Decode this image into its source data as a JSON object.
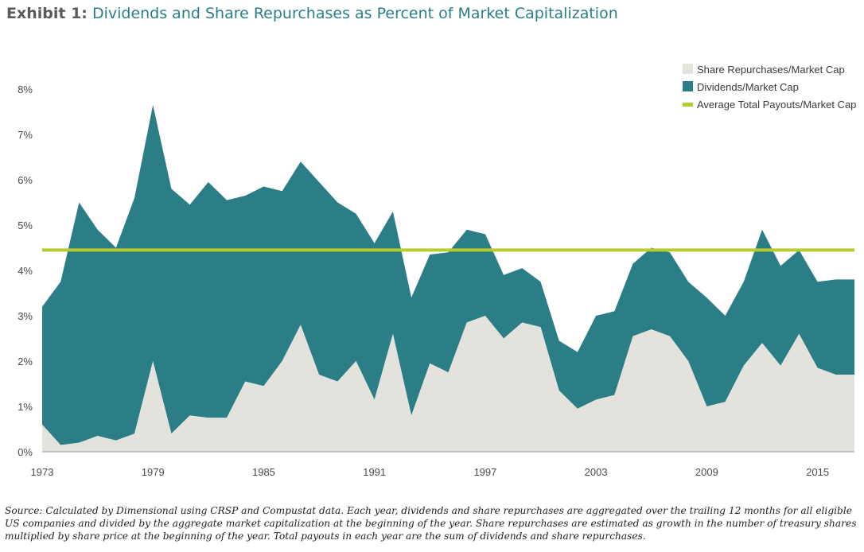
{
  "title": {
    "prefix": "Exhibit 1:",
    "main": "Dividends and Share Repurchases as Percent of Market Capitalization"
  },
  "source_note": "Source: Calculated by Dimensional using CRSP and Compustat data. Each year, dividends and share repurchases are aggregated over the trailing 12 months for all eligible US companies and divided by the aggregate market capitalization at the beginning of the year. Share repurchases are estimated as growth in the number of treasury shares multiplied by share price at the beginning of the year. Total payouts in each year are the sum of dividends and share repurchases.",
  "chart_data": {
    "type": "area",
    "stacked": true,
    "x": [
      1973,
      1974,
      1975,
      1976,
      1977,
      1978,
      1979,
      1980,
      1981,
      1982,
      1983,
      1984,
      1985,
      1986,
      1987,
      1988,
      1989,
      1990,
      1991,
      1992,
      1993,
      1994,
      1995,
      1996,
      1997,
      1998,
      1999,
      2000,
      2001,
      2002,
      2003,
      2004,
      2005,
      2006,
      2007,
      2008,
      2009,
      2010,
      2011,
      2012,
      2013,
      2014,
      2015,
      2016,
      2017
    ],
    "series": [
      {
        "name": "Share Repurchases/Market Cap",
        "color": "#e3e2dd",
        "values": [
          0.6,
          0.15,
          0.2,
          0.35,
          0.25,
          0.4,
          2.0,
          0.4,
          0.8,
          0.75,
          0.75,
          1.55,
          1.45,
          2.0,
          2.8,
          1.7,
          1.55,
          2.0,
          1.15,
          2.6,
          0.8,
          1.95,
          1.75,
          2.85,
          3.0,
          2.5,
          2.85,
          2.75,
          1.35,
          0.95,
          1.15,
          1.25,
          2.55,
          2.7,
          2.55,
          2.0,
          1.0,
          1.1,
          1.9,
          2.4,
          1.9,
          2.6,
          1.85,
          1.7,
          1.7
        ]
      },
      {
        "name": "Dividends/Market Cap",
        "color": "#2b7e86",
        "values": [
          2.6,
          3.6,
          5.3,
          4.55,
          4.25,
          5.2,
          5.65,
          5.4,
          4.65,
          5.2,
          4.8,
          4.1,
          4.4,
          3.75,
          3.6,
          4.25,
          3.95,
          3.25,
          3.45,
          2.7,
          2.6,
          2.4,
          2.65,
          2.05,
          1.8,
          1.4,
          1.2,
          1.0,
          1.1,
          1.25,
          1.85,
          1.85,
          1.6,
          1.8,
          1.85,
          1.75,
          2.4,
          1.9,
          1.85,
          2.5,
          2.2,
          1.85,
          1.9,
          2.1,
          2.1
        ]
      }
    ],
    "average_line": {
      "name": "Average Total Payouts/Market Cap",
      "value": 4.45,
      "color": "#b6cc2c"
    },
    "x_ticks": [
      "1973",
      "1979",
      "1985",
      "1991",
      "1997",
      "2003",
      "2009",
      "2015"
    ],
    "y_ticks": [
      "0%",
      "1%",
      "2%",
      "3%",
      "4%",
      "5%",
      "6%",
      "7%",
      "8%"
    ],
    "ylim": [
      0,
      8
    ],
    "xlim": [
      1973,
      2017
    ],
    "legend_position": "top-right",
    "grid": false
  }
}
